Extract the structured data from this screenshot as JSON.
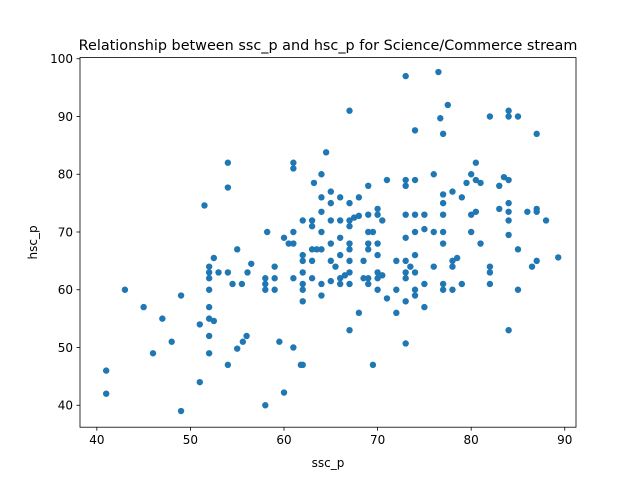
{
  "chart_data": {
    "type": "scatter",
    "title": "Relationship between ssc_p and hsc_p for Science/Commerce stream",
    "xlabel": "ssc_p",
    "ylabel": "hsc_p",
    "xlim": [
      38.2,
      91.2
    ],
    "ylim": [
      36.2,
      100.2
    ],
    "xticks": [
      40,
      50,
      60,
      70,
      80,
      90
    ],
    "yticks": [
      40,
      50,
      60,
      70,
      80,
      90,
      100
    ],
    "grid": false,
    "marker_color": "#1f77b4",
    "points": [
      [
        41,
        46
      ],
      [
        41,
        42
      ],
      [
        43,
        60
      ],
      [
        45,
        57
      ],
      [
        46,
        49
      ],
      [
        47,
        55
      ],
      [
        48,
        51
      ],
      [
        49,
        59
      ],
      [
        49,
        39
      ],
      [
        51,
        54
      ],
      [
        51,
        44
      ],
      [
        51.5,
        74.6
      ],
      [
        52,
        64
      ],
      [
        52,
        63
      ],
      [
        52,
        62
      ],
      [
        52,
        60
      ],
      [
        52,
        57
      ],
      [
        52,
        55
      ],
      [
        52,
        52
      ],
      [
        52,
        49
      ],
      [
        52.5,
        65.5
      ],
      [
        52.5,
        54.6
      ],
      [
        53,
        63
      ],
      [
        54,
        82
      ],
      [
        54,
        77.7
      ],
      [
        54,
        63
      ],
      [
        54,
        47
      ],
      [
        54.5,
        61
      ],
      [
        55,
        67
      ],
      [
        55,
        49.8
      ],
      [
        55.5,
        61
      ],
      [
        55.6,
        51
      ],
      [
        56,
        52
      ],
      [
        56.1,
        63
      ],
      [
        56.5,
        64.5
      ],
      [
        58,
        62
      ],
      [
        58,
        61
      ],
      [
        58,
        60
      ],
      [
        58,
        40
      ],
      [
        58.2,
        70
      ],
      [
        59,
        64
      ],
      [
        59,
        62
      ],
      [
        59,
        60
      ],
      [
        59.5,
        51
      ],
      [
        60,
        69
      ],
      [
        60,
        42.2
      ],
      [
        60.5,
        68
      ],
      [
        61,
        82
      ],
      [
        61,
        81
      ],
      [
        61,
        70
      ],
      [
        61,
        68
      ],
      [
        61,
        62
      ],
      [
        61,
        50
      ],
      [
        62,
        72
      ],
      [
        62,
        66
      ],
      [
        62,
        65
      ],
      [
        62,
        63
      ],
      [
        62,
        61
      ],
      [
        62,
        60
      ],
      [
        62,
        58
      ],
      [
        62,
        47
      ],
      [
        61.8,
        47
      ],
      [
        63,
        72
      ],
      [
        63,
        71
      ],
      [
        63,
        67
      ],
      [
        63,
        65
      ],
      [
        63,
        62
      ],
      [
        63.2,
        78.5
      ],
      [
        63.5,
        67
      ],
      [
        64,
        80
      ],
      [
        64,
        76
      ],
      [
        64,
        73.5
      ],
      [
        64,
        70
      ],
      [
        64,
        67
      ],
      [
        64,
        61
      ],
      [
        64,
        59
      ],
      [
        64.5,
        83.8
      ],
      [
        65,
        77
      ],
      [
        65,
        75
      ],
      [
        65,
        72
      ],
      [
        65,
        68
      ],
      [
        65,
        65
      ],
      [
        65,
        61.5
      ],
      [
        65.5,
        64
      ],
      [
        66,
        76
      ],
      [
        66,
        72
      ],
      [
        66,
        69
      ],
      [
        66,
        66
      ],
      [
        66,
        62
      ],
      [
        66,
        61
      ],
      [
        66.5,
        62.5
      ],
      [
        67,
        91
      ],
      [
        67,
        75
      ],
      [
        67,
        72
      ],
      [
        67,
        71
      ],
      [
        67,
        68
      ],
      [
        67,
        67
      ],
      [
        67,
        65
      ],
      [
        67,
        63
      ],
      [
        67,
        61
      ],
      [
        67,
        53
      ],
      [
        67.5,
        72.5
      ],
      [
        68,
        76
      ],
      [
        68,
        72.8
      ],
      [
        68,
        56
      ],
      [
        68.5,
        65
      ],
      [
        68.5,
        62
      ],
      [
        69,
        78
      ],
      [
        69,
        73
      ],
      [
        69,
        70
      ],
      [
        69,
        68
      ],
      [
        69,
        67
      ],
      [
        69,
        62
      ],
      [
        69,
        61
      ],
      [
        69.5,
        70
      ],
      [
        69.5,
        47
      ],
      [
        70,
        74
      ],
      [
        70,
        73
      ],
      [
        70,
        68
      ],
      [
        70,
        66
      ],
      [
        70,
        63
      ],
      [
        70,
        62
      ],
      [
        70,
        60
      ],
      [
        70.5,
        72
      ],
      [
        70.5,
        62.5
      ],
      [
        71,
        79
      ],
      [
        71,
        58.5
      ],
      [
        72,
        65
      ],
      [
        72,
        60
      ],
      [
        72,
        56
      ],
      [
        73,
        97
      ],
      [
        73,
        79
      ],
      [
        73,
        78
      ],
      [
        73,
        73
      ],
      [
        73,
        69
      ],
      [
        73,
        65
      ],
      [
        73,
        63
      ],
      [
        73,
        62
      ],
      [
        73,
        58
      ],
      [
        73,
        50.7
      ],
      [
        73.5,
        64
      ],
      [
        74,
        87.6
      ],
      [
        74,
        79
      ],
      [
        74,
        73
      ],
      [
        74,
        70
      ],
      [
        74,
        66
      ],
      [
        74,
        63
      ],
      [
        74,
        60
      ],
      [
        74,
        59
      ],
      [
        75,
        73
      ],
      [
        75,
        70.5
      ],
      [
        75,
        57
      ],
      [
        75,
        61
      ],
      [
        76,
        80
      ],
      [
        76,
        70
      ],
      [
        76,
        64
      ],
      [
        76.5,
        97.7
      ],
      [
        76.7,
        89.7
      ],
      [
        77,
        87
      ],
      [
        77,
        76.5
      ],
      [
        77,
        75
      ],
      [
        77,
        73
      ],
      [
        77,
        70
      ],
      [
        77,
        68
      ],
      [
        77,
        61
      ],
      [
        77,
        60
      ],
      [
        77.5,
        92
      ],
      [
        78,
        77
      ],
      [
        78,
        65
      ],
      [
        78,
        64
      ],
      [
        78,
        60
      ],
      [
        78.5,
        65.5
      ],
      [
        79,
        76
      ],
      [
        79,
        61
      ],
      [
        79.5,
        78.5
      ],
      [
        80,
        80
      ],
      [
        80,
        73
      ],
      [
        80,
        70
      ],
      [
        80.5,
        82
      ],
      [
        80.5,
        79
      ],
      [
        80.5,
        73.5
      ],
      [
        81,
        68
      ],
      [
        81,
        78.5
      ],
      [
        82,
        90
      ],
      [
        82,
        64
      ],
      [
        82,
        63
      ],
      [
        82,
        61
      ],
      [
        83,
        78
      ],
      [
        83,
        74
      ],
      [
        83.5,
        79.5
      ],
      [
        84,
        91
      ],
      [
        84,
        90
      ],
      [
        84,
        79
      ],
      [
        84,
        75
      ],
      [
        84,
        73.5
      ],
      [
        84,
        72
      ],
      [
        84,
        69.5
      ],
      [
        84,
        53
      ],
      [
        85,
        90
      ],
      [
        85,
        67
      ],
      [
        85,
        60
      ],
      [
        86,
        73.5
      ],
      [
        86.5,
        64
      ],
      [
        87,
        87
      ],
      [
        87,
        74
      ],
      [
        87,
        73.5
      ],
      [
        87,
        65
      ],
      [
        88,
        72
      ],
      [
        89.3,
        65.6
      ]
    ]
  }
}
